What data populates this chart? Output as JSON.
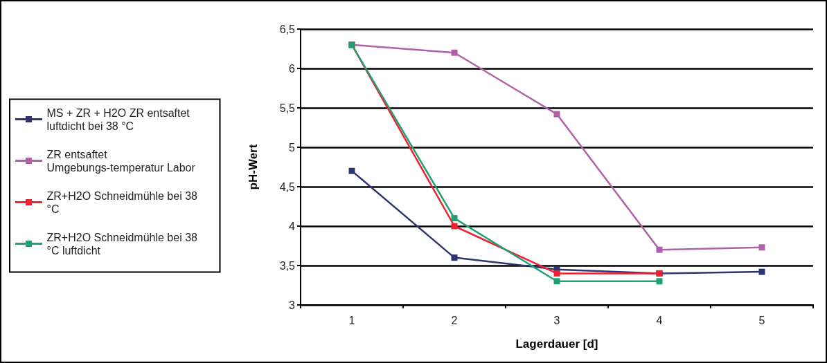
{
  "chart_data": {
    "type": "line",
    "xlabel": "Lagerdauer [d]",
    "ylabel": "pH-Wert",
    "categories": [
      "1",
      "2",
      "3",
      "4",
      "5"
    ],
    "series": [
      {
        "name": "MS + ZR + H2O ZR entsaftet luftdicht bei 38 °C",
        "color": "#2e3470",
        "values": [
          4.7,
          3.6,
          3.45,
          3.4,
          3.42
        ]
      },
      {
        "name": "ZR entsaftet  Umgebungs-temperatur Labor",
        "color": "#b060a8",
        "values": [
          6.3,
          6.2,
          5.42,
          3.7,
          3.73
        ]
      },
      {
        "name": "ZR+H2O Schneidmühle bei 38 °C",
        "color": "#f02030",
        "values": [
          6.3,
          4.0,
          3.4,
          3.4,
          null
        ]
      },
      {
        "name": "ZR+H2O Schneidmühle bei 38 °C luftdicht",
        "color": "#20a070",
        "values": [
          6.3,
          4.1,
          3.3,
          3.3,
          null
        ]
      }
    ],
    "ylim": [
      3,
      6.5
    ],
    "yticks": [
      3,
      {
        "value": 3.5,
        "label": "3,5"
      },
      4,
      {
        "value": 4.5,
        "label": "4,5"
      },
      5,
      {
        "value": 5.5,
        "label": "5,5"
      },
      6,
      {
        "value": 6.5,
        "label": "6,5"
      }
    ],
    "grid": "y",
    "legend": "left",
    "marker": "square",
    "line_style": "solid"
  }
}
